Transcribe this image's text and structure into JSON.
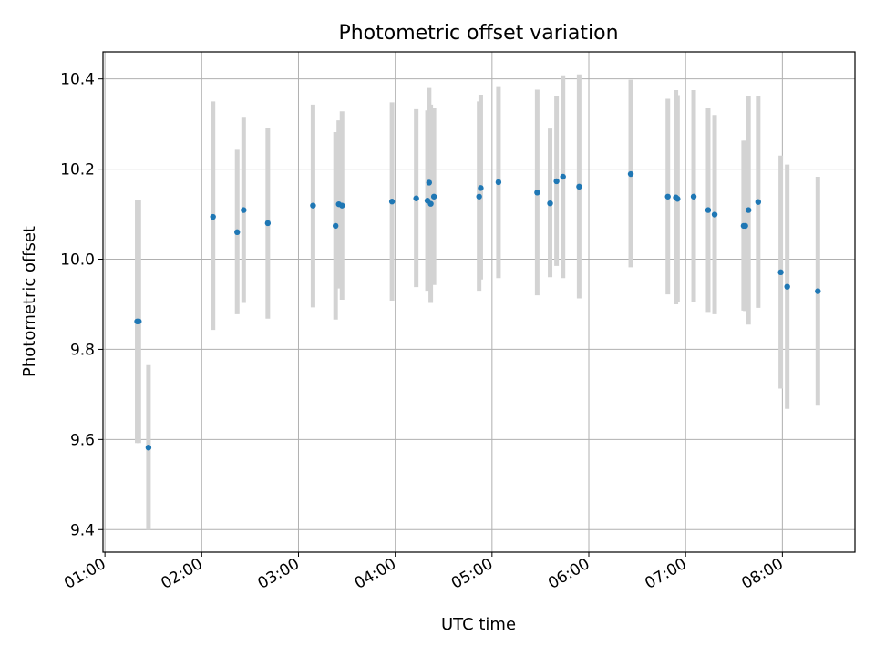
{
  "chart_data": {
    "type": "scatter",
    "title": "Photometric offset variation",
    "xlabel": "UTC time",
    "ylabel": "Photometric offset",
    "grid": true,
    "xlim_hours": [
      0.98,
      8.75
    ],
    "ylim": [
      9.35,
      10.46
    ],
    "x_ticks": [
      "01:00",
      "02:00",
      "03:00",
      "04:00",
      "05:00",
      "06:00",
      "07:00",
      "08:00"
    ],
    "x_tick_values_hours": [
      1,
      2,
      3,
      4,
      5,
      6,
      7,
      8
    ],
    "y_ticks": [
      "9.4",
      "9.6",
      "9.8",
      "10.0",
      "10.2",
      "10.4"
    ],
    "y_tick_values": [
      9.4,
      9.6,
      9.8,
      10.0,
      10.2,
      10.4
    ],
    "colors": {
      "point": "#1f77b4",
      "errorbar": "#d3d3d3",
      "grid": "#b0b0b0",
      "axes": "#000000"
    },
    "points": [
      {
        "time": "01:20",
        "y": 9.862,
        "ylow": 9.592,
        "yhigh": 10.132
      },
      {
        "time": "01:21",
        "y": 9.862,
        "ylow": 9.592,
        "yhigh": 10.132
      },
      {
        "time": "01:27",
        "y": 9.582,
        "ylow": 9.4,
        "yhigh": 9.765
      },
      {
        "time": "02:07",
        "y": 10.094,
        "ylow": 9.843,
        "yhigh": 10.35
      },
      {
        "time": "02:22",
        "y": 10.06,
        "ylow": 9.878,
        "yhigh": 10.243
      },
      {
        "time": "02:26",
        "y": 10.109,
        "ylow": 9.903,
        "yhigh": 10.316
      },
      {
        "time": "02:41",
        "y": 10.08,
        "ylow": 9.868,
        "yhigh": 10.292
      },
      {
        "time": "03:09",
        "y": 10.119,
        "ylow": 9.893,
        "yhigh": 10.343
      },
      {
        "time": "03:23",
        "y": 10.074,
        "ylow": 9.866,
        "yhigh": 10.282
      },
      {
        "time": "03:25",
        "y": 10.122,
        "ylow": 9.935,
        "yhigh": 10.308
      },
      {
        "time": "03:27",
        "y": 10.119,
        "ylow": 9.91,
        "yhigh": 10.328
      },
      {
        "time": "03:58",
        "y": 10.128,
        "ylow": 9.908,
        "yhigh": 10.348
      },
      {
        "time": "04:13",
        "y": 10.135,
        "ylow": 9.938,
        "yhigh": 10.333
      },
      {
        "time": "04:20",
        "y": 10.13,
        "ylow": 9.93,
        "yhigh": 10.33
      },
      {
        "time": "04:21",
        "y": 10.17,
        "ylow": 9.96,
        "yhigh": 10.38
      },
      {
        "time": "04:22",
        "y": 10.123,
        "ylow": 9.903,
        "yhigh": 10.343
      },
      {
        "time": "04:24",
        "y": 10.139,
        "ylow": 9.943,
        "yhigh": 10.335
      },
      {
        "time": "04:52",
        "y": 10.139,
        "ylow": 9.93,
        "yhigh": 10.35
      },
      {
        "time": "04:53",
        "y": 10.158,
        "ylow": 9.955,
        "yhigh": 10.365
      },
      {
        "time": "05:04",
        "y": 10.171,
        "ylow": 9.958,
        "yhigh": 10.384
      },
      {
        "time": "05:28",
        "y": 10.148,
        "ylow": 9.92,
        "yhigh": 10.376
      },
      {
        "time": "05:36",
        "y": 10.124,
        "ylow": 9.96,
        "yhigh": 10.29
      },
      {
        "time": "05:40",
        "y": 10.173,
        "ylow": 9.985,
        "yhigh": 10.363
      },
      {
        "time": "05:44",
        "y": 10.183,
        "ylow": 9.958,
        "yhigh": 10.408
      },
      {
        "time": "05:54",
        "y": 10.161,
        "ylow": 9.913,
        "yhigh": 10.41
      },
      {
        "time": "06:26",
        "y": 10.189,
        "ylow": 9.982,
        "yhigh": 10.398
      },
      {
        "time": "06:49",
        "y": 10.139,
        "ylow": 9.922,
        "yhigh": 10.356
      },
      {
        "time": "06:54",
        "y": 10.137,
        "ylow": 9.9,
        "yhigh": 10.375
      },
      {
        "time": "06:55",
        "y": 10.134,
        "ylow": 9.904,
        "yhigh": 10.364
      },
      {
        "time": "07:05",
        "y": 10.139,
        "ylow": 9.904,
        "yhigh": 10.375
      },
      {
        "time": "07:14",
        "y": 10.109,
        "ylow": 9.883,
        "yhigh": 10.335
      },
      {
        "time": "07:18",
        "y": 10.099,
        "ylow": 9.878,
        "yhigh": 10.32
      },
      {
        "time": "07:36",
        "y": 10.074,
        "ylow": 9.886,
        "yhigh": 10.263
      },
      {
        "time": "07:37",
        "y": 10.074,
        "ylow": 9.885,
        "yhigh": 10.263
      },
      {
        "time": "07:39",
        "y": 10.109,
        "ylow": 9.855,
        "yhigh": 10.363
      },
      {
        "time": "07:45",
        "y": 10.127,
        "ylow": 9.892,
        "yhigh": 10.363
      },
      {
        "time": "07:59",
        "y": 9.971,
        "ylow": 9.713,
        "yhigh": 10.23
      },
      {
        "time": "08:03",
        "y": 9.939,
        "ylow": 9.668,
        "yhigh": 10.21
      },
      {
        "time": "08:22",
        "y": 9.929,
        "ylow": 9.675,
        "yhigh": 10.183
      }
    ]
  }
}
